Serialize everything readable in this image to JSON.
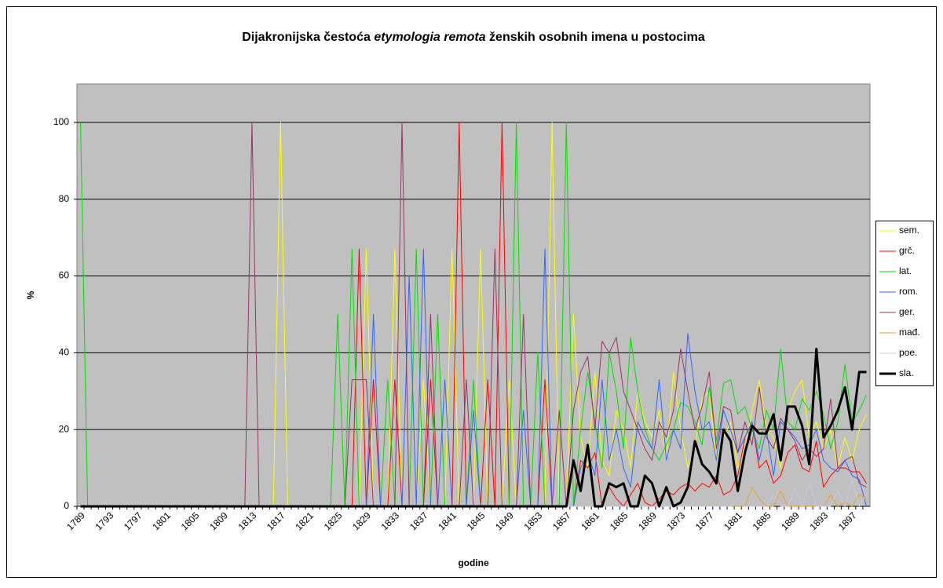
{
  "chart_data": {
    "type": "line",
    "title": [
      "Dijakronijska čestoća ",
      "etymologia remota",
      " ženskih osobnih imena u postocima"
    ],
    "xlabel": "godine",
    "ylabel": "%",
    "categories": [
      "1789",
      null,
      null,
      null,
      "1793",
      null,
      null,
      null,
      "1797",
      null,
      null,
      null,
      "1801",
      null,
      null,
      null,
      "1805",
      null,
      null,
      null,
      "1809",
      null,
      null,
      null,
      "1813",
      null,
      null,
      null,
      "1817",
      null,
      null,
      null,
      "1821",
      null,
      null,
      null,
      "1825",
      null,
      null,
      null,
      "1829",
      null,
      null,
      null,
      "1833",
      null,
      null,
      null,
      "1837",
      null,
      null,
      null,
      "1841",
      null,
      null,
      null,
      "1845",
      null,
      null,
      null,
      "1849",
      null,
      null,
      null,
      "1853",
      null,
      null,
      null,
      "1857",
      null,
      null,
      null,
      "1861",
      null,
      null,
      null,
      "1865",
      null,
      null,
      null,
      "1869",
      null,
      null,
      null,
      "1873",
      null,
      null,
      null,
      "1877",
      null,
      null,
      null,
      "1881",
      null,
      null,
      null,
      "1885",
      null,
      null,
      null,
      "1889",
      null,
      null,
      null,
      "1893",
      null,
      null,
      null,
      "1897",
      null,
      null
    ],
    "ylim": [
      0,
      110
    ],
    "yticks": [
      0,
      20,
      40,
      60,
      80,
      100
    ],
    "grid": true,
    "legend": "right",
    "series": [
      {
        "name": "sem.",
        "color": "#ffff00",
        "width": 1,
        "values": [
          0,
          0,
          0,
          0,
          0,
          0,
          0,
          0,
          0,
          0,
          0,
          0,
          0,
          0,
          0,
          0,
          0,
          0,
          0,
          0,
          0,
          0,
          0,
          0,
          0,
          0,
          0,
          0,
          100,
          0,
          0,
          0,
          0,
          0,
          0,
          0,
          0,
          0,
          0,
          0,
          67,
          0,
          0,
          0,
          67,
          0,
          0,
          0,
          33,
          0,
          0,
          0,
          67,
          0,
          0,
          0,
          67,
          0,
          0,
          0,
          33,
          0,
          0,
          0,
          0,
          0,
          100,
          0,
          0,
          50,
          18,
          10,
          35,
          12,
          8,
          25,
          20,
          10,
          30,
          22,
          18,
          25,
          12,
          35,
          20,
          10,
          15,
          28,
          30,
          12,
          18,
          22,
          10,
          15,
          25,
          33,
          20,
          18,
          10,
          25,
          30,
          33,
          18,
          22,
          15,
          20,
          10,
          18,
          12,
          20,
          24
        ]
      },
      {
        "name": "grč.",
        "color": "#ff0000",
        "width": 1,
        "values": [
          0,
          0,
          0,
          0,
          0,
          0,
          0,
          0,
          0,
          0,
          0,
          0,
          0,
          0,
          0,
          0,
          0,
          0,
          0,
          0,
          0,
          0,
          0,
          0,
          0,
          0,
          0,
          0,
          0,
          0,
          0,
          0,
          0,
          0,
          0,
          0,
          0,
          0,
          0,
          67,
          0,
          33,
          0,
          0,
          33,
          0,
          0,
          0,
          0,
          33,
          0,
          0,
          0,
          100,
          0,
          0,
          0,
          33,
          0,
          100,
          0,
          0,
          0,
          0,
          0,
          33,
          0,
          0,
          0,
          0,
          12,
          10,
          14,
          0,
          5,
          2,
          0,
          3,
          6,
          1,
          0,
          2,
          4,
          3,
          5,
          6,
          4,
          6,
          5,
          8,
          3,
          4,
          8,
          18,
          22,
          10,
          12,
          6,
          8,
          14,
          16,
          10,
          9,
          17,
          5,
          8,
          10,
          10,
          9,
          9,
          6
        ]
      },
      {
        "name": "lat.",
        "color": "#00e000",
        "width": 1,
        "values": [
          100,
          0,
          0,
          0,
          0,
          0,
          0,
          0,
          0,
          0,
          0,
          0,
          0,
          0,
          0,
          0,
          0,
          0,
          0,
          0,
          0,
          0,
          0,
          0,
          0,
          0,
          0,
          0,
          0,
          0,
          0,
          0,
          0,
          0,
          0,
          0,
          50,
          0,
          67,
          0,
          0,
          0,
          0,
          33,
          0,
          0,
          0,
          67,
          0,
          0,
          50,
          0,
          0,
          0,
          0,
          33,
          0,
          0,
          0,
          0,
          0,
          100,
          0,
          0,
          40,
          0,
          0,
          0,
          100,
          0,
          20,
          35,
          22,
          10,
          40,
          30,
          15,
          44,
          30,
          20,
          15,
          12,
          16,
          20,
          27,
          26,
          22,
          16,
          31,
          17,
          32,
          33,
          24,
          26,
          20,
          15,
          25,
          20,
          41,
          22,
          20,
          28,
          25,
          30,
          24,
          15,
          22,
          37,
          22,
          25,
          29
        ]
      },
      {
        "name": "rom.",
        "color": "#3366ff",
        "width": 1,
        "values": [
          0,
          0,
          0,
          0,
          0,
          0,
          0,
          0,
          0,
          0,
          0,
          0,
          0,
          0,
          0,
          0,
          0,
          0,
          0,
          0,
          0,
          0,
          0,
          0,
          0,
          0,
          0,
          0,
          0,
          0,
          0,
          0,
          0,
          0,
          0,
          0,
          0,
          0,
          0,
          0,
          0,
          50,
          0,
          0,
          0,
          0,
          60,
          0,
          67,
          0,
          0,
          33,
          0,
          0,
          0,
          25,
          0,
          0,
          0,
          0,
          0,
          0,
          25,
          0,
          0,
          67,
          0,
          0,
          0,
          0,
          10,
          14,
          8,
          33,
          12,
          20,
          10,
          5,
          22,
          18,
          15,
          33,
          12,
          20,
          15,
          45,
          30,
          20,
          22,
          12,
          25,
          20,
          14,
          18,
          22,
          12,
          20,
          8,
          22,
          20,
          18,
          15,
          16,
          20,
          12,
          10,
          9,
          12,
          8,
          7,
          0
        ]
      },
      {
        "name": "ger.",
        "color": "#993366",
        "width": 1,
        "values": [
          0,
          0,
          0,
          0,
          0,
          0,
          0,
          0,
          0,
          0,
          0,
          0,
          0,
          0,
          0,
          0,
          0,
          0,
          0,
          0,
          0,
          0,
          0,
          0,
          100,
          0,
          0,
          0,
          0,
          0,
          0,
          0,
          0,
          0,
          0,
          0,
          0,
          0,
          33,
          33,
          33,
          0,
          0,
          0,
          0,
          100,
          0,
          0,
          0,
          50,
          0,
          0,
          0,
          0,
          33,
          0,
          0,
          0,
          67,
          0,
          0,
          0,
          50,
          0,
          0,
          0,
          0,
          25,
          0,
          25,
          35,
          39,
          20,
          43,
          40,
          44,
          30,
          25,
          20,
          15,
          12,
          22,
          18,
          25,
          41,
          30,
          20,
          26,
          35,
          15,
          26,
          25,
          14,
          22,
          16,
          31,
          18,
          15,
          23,
          20,
          17,
          12,
          15,
          13,
          15,
          28,
          10,
          12,
          13,
          6,
          5
        ]
      },
      {
        "name": "mađ.",
        "color": "#e6a020",
        "width": 1,
        "values": [
          0,
          0,
          0,
          0,
          0,
          0,
          0,
          0,
          0,
          0,
          0,
          0,
          0,
          0,
          0,
          0,
          0,
          0,
          0,
          0,
          0,
          0,
          0,
          0,
          0,
          0,
          0,
          0,
          0,
          0,
          0,
          0,
          0,
          0,
          0,
          0,
          0,
          0,
          0,
          0,
          0,
          0,
          0,
          0,
          0,
          0,
          0,
          0,
          0,
          0,
          0,
          0,
          0,
          0,
          0,
          0,
          0,
          0,
          0,
          0,
          0,
          0,
          0,
          0,
          0,
          0,
          0,
          0,
          0,
          0,
          0,
          0,
          0,
          0,
          0,
          0,
          0,
          0,
          0,
          0,
          0,
          0,
          0,
          0,
          0,
          0,
          0,
          0,
          0,
          0,
          0,
          0,
          0,
          0,
          5,
          2,
          0,
          0,
          4,
          0,
          0,
          0,
          0,
          0,
          0,
          3,
          0,
          1,
          0,
          3,
          2
        ]
      },
      {
        "name": "poe.",
        "color": "#c8c8e8",
        "width": 1,
        "values": [
          0,
          0,
          0,
          0,
          0,
          0,
          0,
          0,
          0,
          0,
          0,
          0,
          0,
          0,
          0,
          0,
          0,
          0,
          0,
          0,
          0,
          0,
          0,
          0,
          0,
          0,
          0,
          0,
          0,
          0,
          0,
          0,
          0,
          0,
          0,
          0,
          0,
          0,
          0,
          0,
          0,
          0,
          0,
          0,
          0,
          0,
          0,
          0,
          0,
          0,
          0,
          0,
          0,
          0,
          0,
          0,
          0,
          0,
          0,
          0,
          0,
          0,
          0,
          0,
          0,
          0,
          0,
          0,
          0,
          0,
          0,
          0,
          0,
          0,
          0,
          0,
          0,
          0,
          0,
          0,
          0,
          0,
          0,
          0,
          0,
          0,
          0,
          0,
          0,
          0,
          0,
          0,
          2,
          0,
          0,
          0,
          0,
          3,
          0,
          0,
          5,
          0,
          6,
          0,
          0,
          0,
          4,
          0,
          7,
          0,
          3
        ]
      },
      {
        "name": "sla.",
        "color": "#000000",
        "width": 3,
        "values": [
          0,
          0,
          0,
          0,
          0,
          0,
          0,
          0,
          0,
          0,
          0,
          0,
          0,
          0,
          0,
          0,
          0,
          0,
          0,
          0,
          0,
          0,
          0,
          0,
          0,
          0,
          0,
          0,
          0,
          0,
          0,
          0,
          0,
          0,
          0,
          0,
          0,
          0,
          0,
          0,
          0,
          0,
          0,
          0,
          0,
          0,
          0,
          0,
          0,
          0,
          0,
          0,
          0,
          0,
          0,
          0,
          0,
          0,
          0,
          0,
          0,
          0,
          0,
          0,
          0,
          0,
          0,
          0,
          0,
          12,
          4,
          16,
          0,
          0,
          6,
          5,
          6,
          0,
          0,
          8,
          6,
          0,
          5,
          0,
          1,
          5,
          17,
          11,
          9,
          6,
          20,
          17,
          4,
          14,
          21,
          19,
          19,
          24,
          12,
          26,
          26,
          21,
          11,
          41,
          18,
          21,
          25,
          31,
          20,
          35,
          35
        ]
      }
    ]
  }
}
